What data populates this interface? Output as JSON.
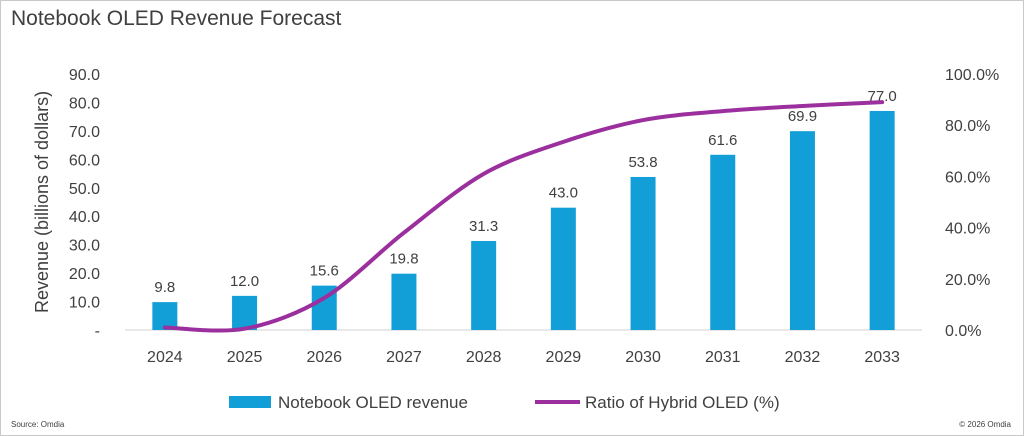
{
  "chart_data": {
    "type": "bar",
    "title": "Notebook OLED Revenue Forecast",
    "categories": [
      "2024",
      "2025",
      "2026",
      "2027",
      "2028",
      "2029",
      "2030",
      "2031",
      "2032",
      "2033"
    ],
    "series": [
      {
        "name": "Notebook OLED revenue",
        "type": "bar",
        "axis": "left",
        "color": "#129fd8",
        "values": [
          9.8,
          12.0,
          15.6,
          19.8,
          31.3,
          43.0,
          53.8,
          61.6,
          69.9,
          77.0
        ],
        "data_labels": [
          "9.8",
          "12.0",
          "15.6",
          "19.8",
          "31.3",
          "43.0",
          "53.8",
          "61.6",
          "69.9",
          "77.0"
        ]
      },
      {
        "name": "Ratio of Hybrid OLED (%)",
        "type": "line",
        "axis": "right",
        "color": "#9b2f9e",
        "values": [
          1.0,
          0.5,
          12.5,
          38.0,
          61.0,
          73.5,
          82.0,
          85.5,
          87.5,
          89.0
        ]
      }
    ],
    "ylabel": "Revenue (billions of dollars)",
    "ylim": [
      0,
      90
    ],
    "yticks": [
      "-",
      "10.0",
      "20.0",
      "30.0",
      "40.0",
      "50.0",
      "60.0",
      "70.0",
      "80.0",
      "90.0"
    ],
    "y2lim": [
      0,
      100
    ],
    "y2ticks": [
      "0.0%",
      "20.0%",
      "40.0%",
      "60.0%",
      "80.0%",
      "100.0%"
    ],
    "legend_position": "bottom",
    "grid": false
  },
  "footer": {
    "source": "Source: Omdia",
    "copyright": "© 2026 Omdia"
  }
}
